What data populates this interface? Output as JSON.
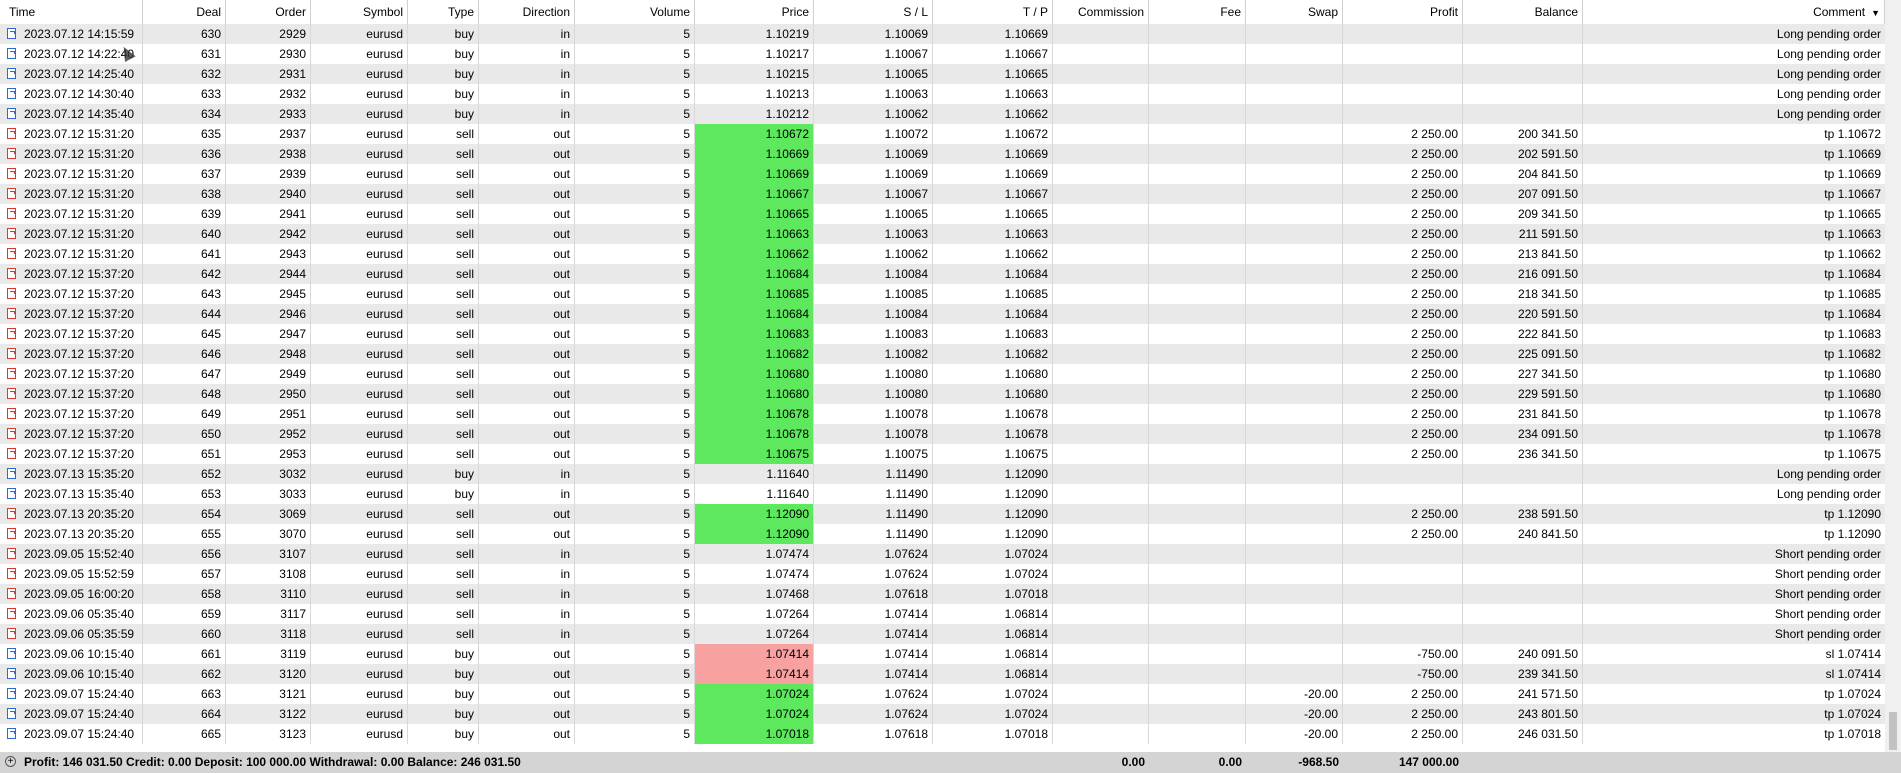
{
  "columns": {
    "time": "Time",
    "deal": "Deal",
    "order": "Order",
    "symbol": "Symbol",
    "type": "Type",
    "direction": "Direction",
    "volume": "Volume",
    "price": "Price",
    "sl": "S / L",
    "tp": "T / P",
    "commission": "Commission",
    "fee": "Fee",
    "swap": "Swap",
    "profit": "Profit",
    "balance": "Balance",
    "comment": "Comment",
    "comment_sort_icon": "▼"
  },
  "colors": {
    "price_profit": "#5de85d",
    "price_loss": "#f7a1a1",
    "buy_icon": "#2a6bd1",
    "sell_icon": "#d83a2e"
  },
  "rows": [
    {
      "time": "2023.07.12 14:15:59",
      "deal": "630",
      "order": "2929",
      "symbol": "eurusd",
      "type": "buy",
      "direction": "in",
      "volume": "5",
      "price": "1.10219",
      "sl": "1.10069",
      "tp": "1.10669",
      "commission": "",
      "fee": "",
      "swap": "",
      "profit": "",
      "balance": "",
      "comment": "Long pending order",
      "hl": ""
    },
    {
      "time": "2023.07.12 14:22:40",
      "deal": "631",
      "order": "2930",
      "symbol": "eurusd",
      "type": "buy",
      "direction": "in",
      "volume": "5",
      "price": "1.10217",
      "sl": "1.10067",
      "tp": "1.10667",
      "commission": "",
      "fee": "",
      "swap": "",
      "profit": "",
      "balance": "",
      "comment": "Long pending order",
      "hl": ""
    },
    {
      "time": "2023.07.12 14:25:40",
      "deal": "632",
      "order": "2931",
      "symbol": "eurusd",
      "type": "buy",
      "direction": "in",
      "volume": "5",
      "price": "1.10215",
      "sl": "1.10065",
      "tp": "1.10665",
      "commission": "",
      "fee": "",
      "swap": "",
      "profit": "",
      "balance": "",
      "comment": "Long pending order",
      "hl": ""
    },
    {
      "time": "2023.07.12 14:30:40",
      "deal": "633",
      "order": "2932",
      "symbol": "eurusd",
      "type": "buy",
      "direction": "in",
      "volume": "5",
      "price": "1.10213",
      "sl": "1.10063",
      "tp": "1.10663",
      "commission": "",
      "fee": "",
      "swap": "",
      "profit": "",
      "balance": "",
      "comment": "Long pending order",
      "hl": ""
    },
    {
      "time": "2023.07.12 14:35:40",
      "deal": "634",
      "order": "2933",
      "symbol": "eurusd",
      "type": "buy",
      "direction": "in",
      "volume": "5",
      "price": "1.10212",
      "sl": "1.10062",
      "tp": "1.10662",
      "commission": "",
      "fee": "",
      "swap": "",
      "profit": "",
      "balance": "",
      "comment": "Long pending order",
      "hl": ""
    },
    {
      "time": "2023.07.12 15:31:20",
      "deal": "635",
      "order": "2937",
      "symbol": "eurusd",
      "type": "sell",
      "direction": "out",
      "volume": "5",
      "price": "1.10672",
      "sl": "1.10072",
      "tp": "1.10672",
      "commission": "",
      "fee": "",
      "swap": "",
      "profit": "2 250.00",
      "balance": "200 341.50",
      "comment": "tp 1.10672",
      "hl": "green"
    },
    {
      "time": "2023.07.12 15:31:20",
      "deal": "636",
      "order": "2938",
      "symbol": "eurusd",
      "type": "sell",
      "direction": "out",
      "volume": "5",
      "price": "1.10669",
      "sl": "1.10069",
      "tp": "1.10669",
      "commission": "",
      "fee": "",
      "swap": "",
      "profit": "2 250.00",
      "balance": "202 591.50",
      "comment": "tp 1.10669",
      "hl": "green"
    },
    {
      "time": "2023.07.12 15:31:20",
      "deal": "637",
      "order": "2939",
      "symbol": "eurusd",
      "type": "sell",
      "direction": "out",
      "volume": "5",
      "price": "1.10669",
      "sl": "1.10069",
      "tp": "1.10669",
      "commission": "",
      "fee": "",
      "swap": "",
      "profit": "2 250.00",
      "balance": "204 841.50",
      "comment": "tp 1.10669",
      "hl": "green"
    },
    {
      "time": "2023.07.12 15:31:20",
      "deal": "638",
      "order": "2940",
      "symbol": "eurusd",
      "type": "sell",
      "direction": "out",
      "volume": "5",
      "price": "1.10667",
      "sl": "1.10067",
      "tp": "1.10667",
      "commission": "",
      "fee": "",
      "swap": "",
      "profit": "2 250.00",
      "balance": "207 091.50",
      "comment": "tp 1.10667",
      "hl": "green"
    },
    {
      "time": "2023.07.12 15:31:20",
      "deal": "639",
      "order": "2941",
      "symbol": "eurusd",
      "type": "sell",
      "direction": "out",
      "volume": "5",
      "price": "1.10665",
      "sl": "1.10065",
      "tp": "1.10665",
      "commission": "",
      "fee": "",
      "swap": "",
      "profit": "2 250.00",
      "balance": "209 341.50",
      "comment": "tp 1.10665",
      "hl": "green"
    },
    {
      "time": "2023.07.12 15:31:20",
      "deal": "640",
      "order": "2942",
      "symbol": "eurusd",
      "type": "sell",
      "direction": "out",
      "volume": "5",
      "price": "1.10663",
      "sl": "1.10063",
      "tp": "1.10663",
      "commission": "",
      "fee": "",
      "swap": "",
      "profit": "2 250.00",
      "balance": "211 591.50",
      "comment": "tp 1.10663",
      "hl": "green"
    },
    {
      "time": "2023.07.12 15:31:20",
      "deal": "641",
      "order": "2943",
      "symbol": "eurusd",
      "type": "sell",
      "direction": "out",
      "volume": "5",
      "price": "1.10662",
      "sl": "1.10062",
      "tp": "1.10662",
      "commission": "",
      "fee": "",
      "swap": "",
      "profit": "2 250.00",
      "balance": "213 841.50",
      "comment": "tp 1.10662",
      "hl": "green"
    },
    {
      "time": "2023.07.12 15:37:20",
      "deal": "642",
      "order": "2944",
      "symbol": "eurusd",
      "type": "sell",
      "direction": "out",
      "volume": "5",
      "price": "1.10684",
      "sl": "1.10084",
      "tp": "1.10684",
      "commission": "",
      "fee": "",
      "swap": "",
      "profit": "2 250.00",
      "balance": "216 091.50",
      "comment": "tp 1.10684",
      "hl": "green"
    },
    {
      "time": "2023.07.12 15:37:20",
      "deal": "643",
      "order": "2945",
      "symbol": "eurusd",
      "type": "sell",
      "direction": "out",
      "volume": "5",
      "price": "1.10685",
      "sl": "1.10085",
      "tp": "1.10685",
      "commission": "",
      "fee": "",
      "swap": "",
      "profit": "2 250.00",
      "balance": "218 341.50",
      "comment": "tp 1.10685",
      "hl": "green"
    },
    {
      "time": "2023.07.12 15:37:20",
      "deal": "644",
      "order": "2946",
      "symbol": "eurusd",
      "type": "sell",
      "direction": "out",
      "volume": "5",
      "price": "1.10684",
      "sl": "1.10084",
      "tp": "1.10684",
      "commission": "",
      "fee": "",
      "swap": "",
      "profit": "2 250.00",
      "balance": "220 591.50",
      "comment": "tp 1.10684",
      "hl": "green"
    },
    {
      "time": "2023.07.12 15:37:20",
      "deal": "645",
      "order": "2947",
      "symbol": "eurusd",
      "type": "sell",
      "direction": "out",
      "volume": "5",
      "price": "1.10683",
      "sl": "1.10083",
      "tp": "1.10683",
      "commission": "",
      "fee": "",
      "swap": "",
      "profit": "2 250.00",
      "balance": "222 841.50",
      "comment": "tp 1.10683",
      "hl": "green"
    },
    {
      "time": "2023.07.12 15:37:20",
      "deal": "646",
      "order": "2948",
      "symbol": "eurusd",
      "type": "sell",
      "direction": "out",
      "volume": "5",
      "price": "1.10682",
      "sl": "1.10082",
      "tp": "1.10682",
      "commission": "",
      "fee": "",
      "swap": "",
      "profit": "2 250.00",
      "balance": "225 091.50",
      "comment": "tp 1.10682",
      "hl": "green"
    },
    {
      "time": "2023.07.12 15:37:20",
      "deal": "647",
      "order": "2949",
      "symbol": "eurusd",
      "type": "sell",
      "direction": "out",
      "volume": "5",
      "price": "1.10680",
      "sl": "1.10080",
      "tp": "1.10680",
      "commission": "",
      "fee": "",
      "swap": "",
      "profit": "2 250.00",
      "balance": "227 341.50",
      "comment": "tp 1.10680",
      "hl": "green"
    },
    {
      "time": "2023.07.12 15:37:20",
      "deal": "648",
      "order": "2950",
      "symbol": "eurusd",
      "type": "sell",
      "direction": "out",
      "volume": "5",
      "price": "1.10680",
      "sl": "1.10080",
      "tp": "1.10680",
      "commission": "",
      "fee": "",
      "swap": "",
      "profit": "2 250.00",
      "balance": "229 591.50",
      "comment": "tp 1.10680",
      "hl": "green"
    },
    {
      "time": "2023.07.12 15:37:20",
      "deal": "649",
      "order": "2951",
      "symbol": "eurusd",
      "type": "sell",
      "direction": "out",
      "volume": "5",
      "price": "1.10678",
      "sl": "1.10078",
      "tp": "1.10678",
      "commission": "",
      "fee": "",
      "swap": "",
      "profit": "2 250.00",
      "balance": "231 841.50",
      "comment": "tp 1.10678",
      "hl": "green"
    },
    {
      "time": "2023.07.12 15:37:20",
      "deal": "650",
      "order": "2952",
      "symbol": "eurusd",
      "type": "sell",
      "direction": "out",
      "volume": "5",
      "price": "1.10678",
      "sl": "1.10078",
      "tp": "1.10678",
      "commission": "",
      "fee": "",
      "swap": "",
      "profit": "2 250.00",
      "balance": "234 091.50",
      "comment": "tp 1.10678",
      "hl": "green"
    },
    {
      "time": "2023.07.12 15:37:20",
      "deal": "651",
      "order": "2953",
      "symbol": "eurusd",
      "type": "sell",
      "direction": "out",
      "volume": "5",
      "price": "1.10675",
      "sl": "1.10075",
      "tp": "1.10675",
      "commission": "",
      "fee": "",
      "swap": "",
      "profit": "2 250.00",
      "balance": "236 341.50",
      "comment": "tp 1.10675",
      "hl": "green"
    },
    {
      "time": "2023.07.13 15:35:20",
      "deal": "652",
      "order": "3032",
      "symbol": "eurusd",
      "type": "buy",
      "direction": "in",
      "volume": "5",
      "price": "1.11640",
      "sl": "1.11490",
      "tp": "1.12090",
      "commission": "",
      "fee": "",
      "swap": "",
      "profit": "",
      "balance": "",
      "comment": "Long pending order",
      "hl": ""
    },
    {
      "time": "2023.07.13 15:35:40",
      "deal": "653",
      "order": "3033",
      "symbol": "eurusd",
      "type": "buy",
      "direction": "in",
      "volume": "5",
      "price": "1.11640",
      "sl": "1.11490",
      "tp": "1.12090",
      "commission": "",
      "fee": "",
      "swap": "",
      "profit": "",
      "balance": "",
      "comment": "Long pending order",
      "hl": ""
    },
    {
      "time": "2023.07.13 20:35:20",
      "deal": "654",
      "order": "3069",
      "symbol": "eurusd",
      "type": "sell",
      "direction": "out",
      "volume": "5",
      "price": "1.12090",
      "sl": "1.11490",
      "tp": "1.12090",
      "commission": "",
      "fee": "",
      "swap": "",
      "profit": "2 250.00",
      "balance": "238 591.50",
      "comment": "tp 1.12090",
      "hl": "green"
    },
    {
      "time": "2023.07.13 20:35:20",
      "deal": "655",
      "order": "3070",
      "symbol": "eurusd",
      "type": "sell",
      "direction": "out",
      "volume": "5",
      "price": "1.12090",
      "sl": "1.11490",
      "tp": "1.12090",
      "commission": "",
      "fee": "",
      "swap": "",
      "profit": "2 250.00",
      "balance": "240 841.50",
      "comment": "tp 1.12090",
      "hl": "green"
    },
    {
      "time": "2023.09.05 15:52:40",
      "deal": "656",
      "order": "3107",
      "symbol": "eurusd",
      "type": "sell",
      "direction": "in",
      "volume": "5",
      "price": "1.07474",
      "sl": "1.07624",
      "tp": "1.07024",
      "commission": "",
      "fee": "",
      "swap": "",
      "profit": "",
      "balance": "",
      "comment": "Short pending order",
      "hl": ""
    },
    {
      "time": "2023.09.05 15:52:59",
      "deal": "657",
      "order": "3108",
      "symbol": "eurusd",
      "type": "sell",
      "direction": "in",
      "volume": "5",
      "price": "1.07474",
      "sl": "1.07624",
      "tp": "1.07024",
      "commission": "",
      "fee": "",
      "swap": "",
      "profit": "",
      "balance": "",
      "comment": "Short pending order",
      "hl": ""
    },
    {
      "time": "2023.09.05 16:00:20",
      "deal": "658",
      "order": "3110",
      "symbol": "eurusd",
      "type": "sell",
      "direction": "in",
      "volume": "5",
      "price": "1.07468",
      "sl": "1.07618",
      "tp": "1.07018",
      "commission": "",
      "fee": "",
      "swap": "",
      "profit": "",
      "balance": "",
      "comment": "Short pending order",
      "hl": ""
    },
    {
      "time": "2023.09.06 05:35:40",
      "deal": "659",
      "order": "3117",
      "symbol": "eurusd",
      "type": "sell",
      "direction": "in",
      "volume": "5",
      "price": "1.07264",
      "sl": "1.07414",
      "tp": "1.06814",
      "commission": "",
      "fee": "",
      "swap": "",
      "profit": "",
      "balance": "",
      "comment": "Short pending order",
      "hl": ""
    },
    {
      "time": "2023.09.06 05:35:59",
      "deal": "660",
      "order": "3118",
      "symbol": "eurusd",
      "type": "sell",
      "direction": "in",
      "volume": "5",
      "price": "1.07264",
      "sl": "1.07414",
      "tp": "1.06814",
      "commission": "",
      "fee": "",
      "swap": "",
      "profit": "",
      "balance": "",
      "comment": "Short pending order",
      "hl": ""
    },
    {
      "time": "2023.09.06 10:15:40",
      "deal": "661",
      "order": "3119",
      "symbol": "eurusd",
      "type": "buy",
      "direction": "out",
      "volume": "5",
      "price": "1.07414",
      "sl": "1.07414",
      "tp": "1.06814",
      "commission": "",
      "fee": "",
      "swap": "",
      "profit": "-750.00",
      "balance": "240 091.50",
      "comment": "sl 1.07414",
      "hl": "red"
    },
    {
      "time": "2023.09.06 10:15:40",
      "deal": "662",
      "order": "3120",
      "symbol": "eurusd",
      "type": "buy",
      "direction": "out",
      "volume": "5",
      "price": "1.07414",
      "sl": "1.07414",
      "tp": "1.06814",
      "commission": "",
      "fee": "",
      "swap": "",
      "profit": "-750.00",
      "balance": "239 341.50",
      "comment": "sl 1.07414",
      "hl": "red"
    },
    {
      "time": "2023.09.07 15:24:40",
      "deal": "663",
      "order": "3121",
      "symbol": "eurusd",
      "type": "buy",
      "direction": "out",
      "volume": "5",
      "price": "1.07024",
      "sl": "1.07624",
      "tp": "1.07024",
      "commission": "",
      "fee": "",
      "swap": "-20.00",
      "profit": "2 250.00",
      "balance": "241 571.50",
      "comment": "tp 1.07024",
      "hl": "green"
    },
    {
      "time": "2023.09.07 15:24:40",
      "deal": "664",
      "order": "3122",
      "symbol": "eurusd",
      "type": "buy",
      "direction": "out",
      "volume": "5",
      "price": "1.07024",
      "sl": "1.07624",
      "tp": "1.07024",
      "commission": "",
      "fee": "",
      "swap": "-20.00",
      "profit": "2 250.00",
      "balance": "243 801.50",
      "comment": "tp 1.07024",
      "hl": "green"
    },
    {
      "time": "2023.09.07 15:24:40",
      "deal": "665",
      "order": "3123",
      "symbol": "eurusd",
      "type": "buy",
      "direction": "out",
      "volume": "5",
      "price": "1.07018",
      "sl": "1.07618",
      "tp": "1.07018",
      "commission": "",
      "fee": "",
      "swap": "-20.00",
      "profit": "2 250.00",
      "balance": "246 031.50",
      "comment": "tp 1.07018",
      "hl": "green"
    }
  ],
  "status": {
    "summary": "Profit: 146 031.50  Credit: 0.00  Deposit: 100 000.00  Withdrawal: 0.00  Balance: 246 031.50",
    "commission_total": "0.00",
    "fee_total": "0.00",
    "swap_total": "-968.50",
    "profit_total": "147 000.00"
  }
}
